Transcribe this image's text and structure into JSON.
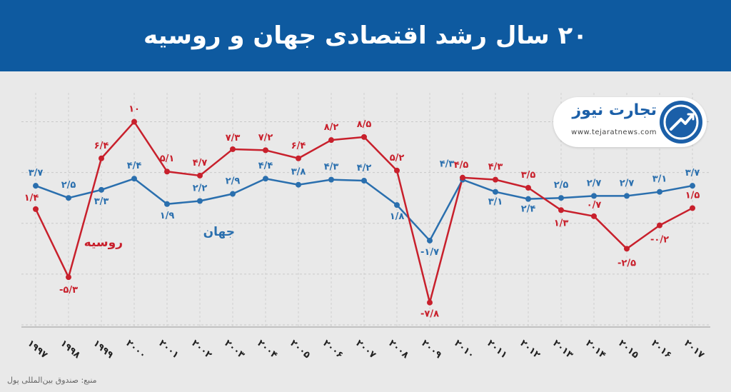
{
  "header": {
    "title": "۲۰ سال رشد اقتصادی جهان و روسیه"
  },
  "logo": {
    "name": "تجارت نیوز",
    "url": "www.tejaratnews.com"
  },
  "source": "منبع: صندوق بین‌المللی پول",
  "colors": {
    "header_bg": "#0e5aa0",
    "world": "#2a6fae",
    "russia": "#c8202c",
    "background": "#e9e9e9"
  },
  "chart_data": {
    "type": "line",
    "title": "۲۰ سال رشد اقتصادی جهان و روسیه",
    "x": [
      1997,
      1998,
      1999,
      2000,
      2001,
      2002,
      2003,
      2004,
      2005,
      2006,
      2007,
      2008,
      2009,
      2010,
      2011,
      2012,
      2013,
      2014,
      2015,
      2016,
      2017
    ],
    "x_tick_labels": [
      "۱۹۹۷",
      "۱۹۹۸",
      "۱۹۹۹",
      "۲۰۰۰",
      "۲۰۰۱",
      "۲۰۰۲",
      "۲۰۰۳",
      "۲۰۰۴",
      "۲۰۰۵",
      "۲۰۰۶",
      "۲۰۰۷",
      "۲۰۰۸",
      "۲۰۰۹",
      "۲۰۱۰",
      "۲۰۱۱",
      "۲۰۱۲",
      "۲۰۱۳",
      "۲۰۱۴",
      "۲۰۱۵",
      "۲۰۱۶",
      "۲۰۱۷"
    ],
    "series": [
      {
        "name": "جهان",
        "color": "#2a6fae",
        "values": [
          3.7,
          2.5,
          3.3,
          4.4,
          1.9,
          2.2,
          2.9,
          4.4,
          3.8,
          4.3,
          4.2,
          1.8,
          -1.7,
          4.3,
          3.1,
          2.4,
          2.5,
          2.7,
          2.7,
          3.1,
          3.7
        ],
        "labels": [
          "۳/۷",
          "۲/۵",
          "۳/۳",
          "۴/۴",
          "۱/۹",
          "۲/۲",
          "۲/۹",
          "۴/۴",
          "۳/۸",
          "۴/۳",
          "۴/۲",
          "۱/۸",
          "-۱/۷",
          "۴/۳",
          "۳/۱",
          "۲/۴",
          "۲/۵",
          "۲/۷",
          "۲/۷",
          "۳/۱",
          "۳/۷"
        ]
      },
      {
        "name": "روسیه",
        "color": "#c8202c",
        "values": [
          1.4,
          -5.3,
          6.4,
          10,
          5.1,
          4.7,
          7.3,
          7.2,
          6.4,
          8.2,
          8.5,
          5.2,
          -7.8,
          4.5,
          4.3,
          3.5,
          1.3,
          0.7,
          -2.5,
          -0.2,
          1.5
        ],
        "labels": [
          "۱/۴",
          "-۵/۳",
          "۶/۴",
          "۱۰",
          "۵/۱",
          "۴/۷",
          "۷/۳",
          "۷/۲",
          "۶/۴",
          "۸/۲",
          "۸/۵",
          "۵/۲",
          "-۷/۸",
          "۴/۵",
          "۴/۳",
          "۳/۵",
          "۱/۳",
          "۰/۷",
          "-۲/۵",
          "-۰/۲",
          "۱/۵"
        ]
      }
    ],
    "grid": true,
    "ylim": [
      -10,
      12.5
    ]
  }
}
